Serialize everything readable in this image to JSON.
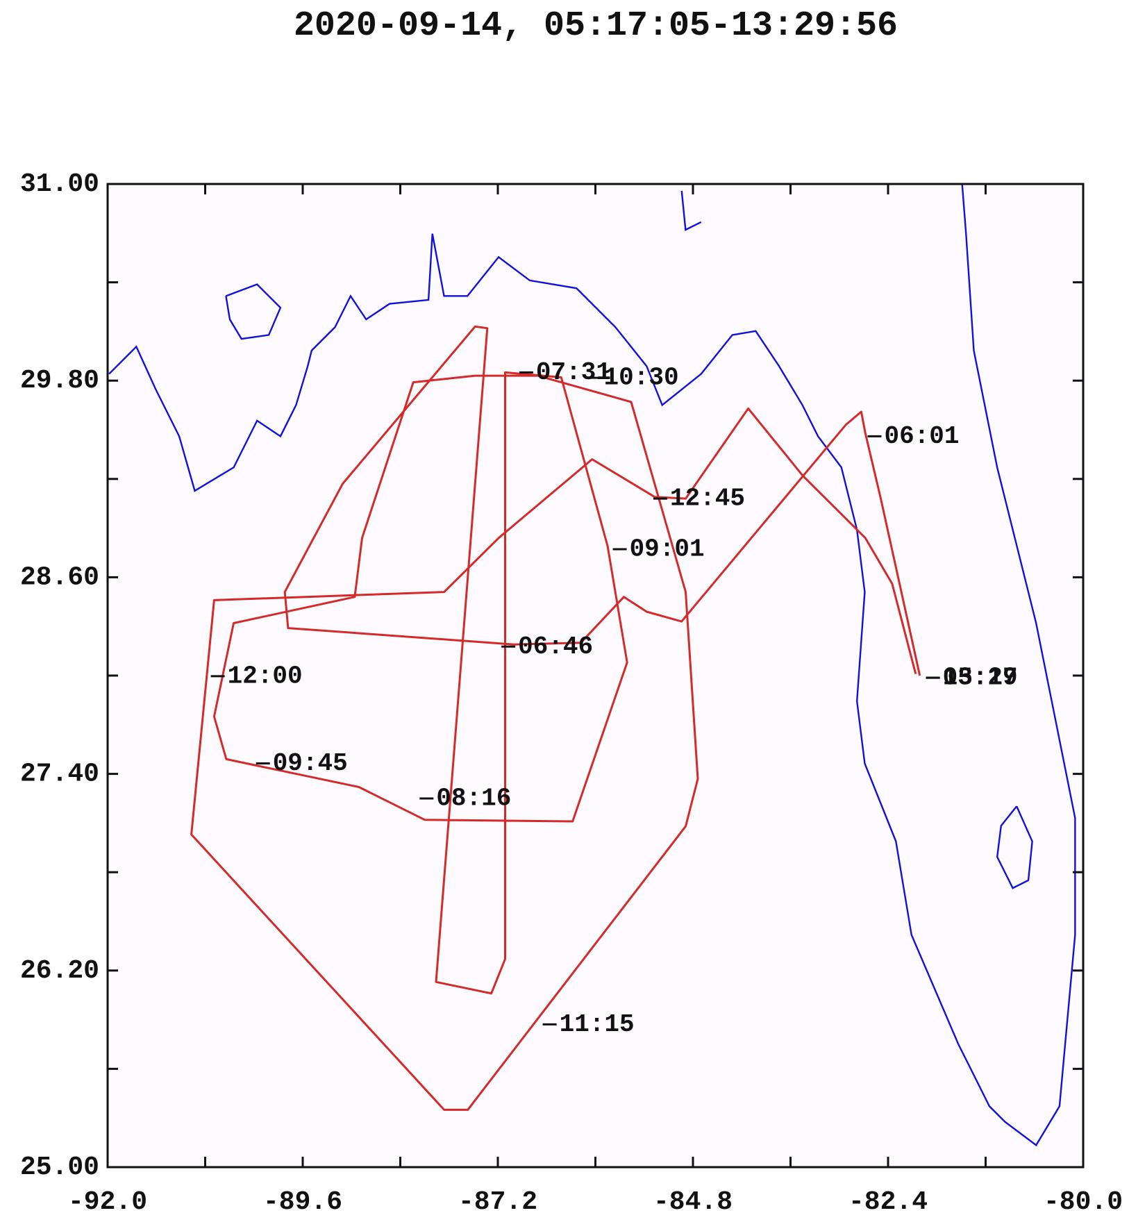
{
  "chart_data": {
    "type": "line",
    "title": "2020-09-14, 05:17:05-13:29:56",
    "x": [
      -82.01,
      -82.49,
      -82.68,
      -82.73,
      -82.92,
      -84.94,
      -85.37,
      -85.65,
      -86.18,
      -87.0,
      -89.78,
      -89.82,
      -89.11,
      -87.48,
      -87.33,
      -87.96,
      -87.28,
      -87.11,
      -87.11,
      -86.42,
      -85.85,
      -85.61,
      -86.28,
      -88.1,
      -88.91,
      -90.54,
      -90.69,
      -90.45,
      -88.96,
      -88.87,
      -88.24,
      -87.48,
      -86.71,
      -85.56,
      -84.89,
      -84.74,
      -84.89,
      -87.57,
      -87.86,
      -90.97,
      -90.69,
      -87.86,
      -87.19,
      -86.04,
      -85.27,
      -84.89,
      -84.12,
      -83.45,
      -82.68,
      -82.35,
      -82.06
    ],
    "series": [
      {
        "color": "#d42a2a",
        "values": [
          28.0,
          29.08,
          29.48,
          29.61,
          29.53,
          28.33,
          28.39,
          28.48,
          28.2,
          28.19,
          28.29,
          28.51,
          29.17,
          30.13,
          30.12,
          26.13,
          26.06,
          26.27,
          29.85,
          29.82,
          28.79,
          28.08,
          27.11,
          27.12,
          27.32,
          27.49,
          27.75,
          28.32,
          28.48,
          28.84,
          29.79,
          29.83,
          29.83,
          29.67,
          28.51,
          27.37,
          27.08,
          25.35,
          25.35,
          27.03,
          28.46,
          28.51,
          28.84,
          29.32,
          29.09,
          29.08,
          29.63,
          29.22,
          28.84,
          28.56,
          28.01
        ]
      }
    ],
    "xlim": [
      -92.0,
      -80.0
    ],
    "ylim": [
      25.0,
      31.0
    ],
    "xticks": [
      {
        "value": -92.0,
        "label": "-92.0"
      },
      {
        "value": -89.6,
        "label": "-89.6"
      },
      {
        "value": -87.2,
        "label": "-87.2"
      },
      {
        "value": -84.8,
        "label": "-84.8"
      },
      -82.4,
      {
        "value": -80.0,
        "label": "-80.0"
      }
    ],
    "xminorticks": [
      -90.8,
      -88.4,
      -86.0,
      -83.6,
      -81.2
    ],
    "yticks": [
      {
        "value": 31.0,
        "label": "31.00"
      },
      {
        "value": 29.8,
        "label": "29.80"
      },
      {
        "value": 28.6,
        "label": "28.60"
      },
      {
        "value": 27.4,
        "label": "27.40"
      },
      {
        "value": 26.2,
        "label": "26.20"
      },
      {
        "value": 25.0,
        "label": "25.00"
      }
    ],
    "yminorticks": [
      30.4,
      29.2,
      28.0,
      26.8,
      25.6
    ],
    "annotations": [
      "07:31",
      "10:30",
      "06:01",
      "12:45",
      "09:01",
      "06:46",
      "12:00",
      "09:45",
      "08:16",
      "11:15",
      "13:29",
      "05:17"
    ]
  }
}
